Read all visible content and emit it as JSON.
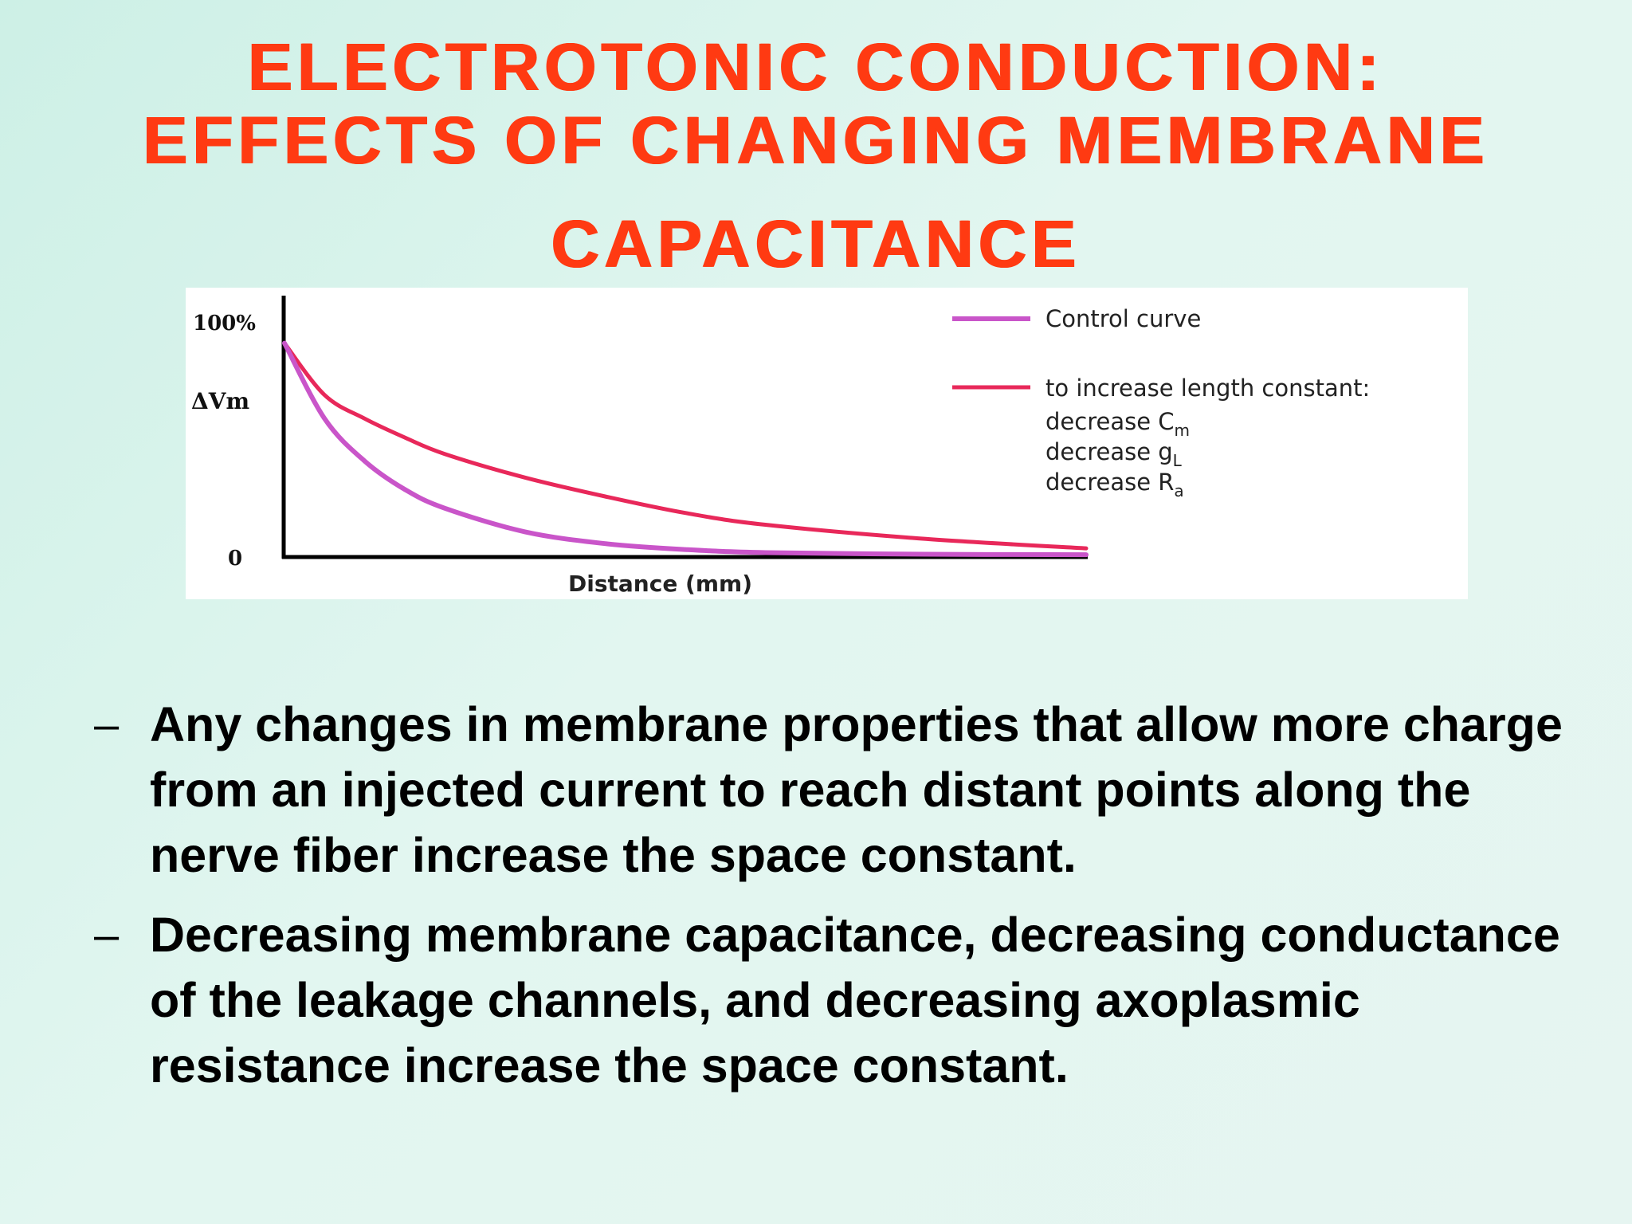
{
  "slide": {
    "title_lines": [
      "ELECTROTONIC CONDUCTION:",
      "EFFECTS OF CHANGING MEMBRANE",
      "CAPACITANCE"
    ],
    "bullets": [
      {
        "dash": "–",
        "text": "Any changes in membrane properties that allow more charge from an injected current to reach distant points along the nerve fiber increase the space constant."
      },
      {
        "dash": "–",
        "text": "Decreasing membrane capacitance, decreasing conductance of the leakage channels, and decreasing axoplasmic resistance increase the space constant."
      }
    ]
  },
  "chart_data": {
    "type": "line",
    "title": "",
    "xlabel": "Distance (mm)",
    "ylabel": "ΔVm",
    "y_ticks": [
      "100%",
      "0"
    ],
    "ylim": [
      0,
      100
    ],
    "xlim": [
      0,
      100
    ],
    "grid": false,
    "legend_position": "top-right",
    "series": [
      {
        "name": "Control curve",
        "color": "#c955c9",
        "x": [
          0,
          5,
          10,
          15,
          20,
          30,
          40,
          50,
          60,
          80,
          100
        ],
        "y": [
          90,
          58,
          40,
          28,
          20,
          10,
          5,
          2.5,
          1.2,
          0.5,
          0.3
        ]
      },
      {
        "name": "to increase length constant:",
        "sub_labels": [
          "decrease C",
          "decrease g",
          "decrease R"
        ],
        "sub_subscripts": [
          "m",
          "L",
          "a"
        ],
        "color": "#e8285a",
        "x": [
          0,
          5,
          10,
          15,
          20,
          30,
          40,
          50,
          60,
          80,
          100
        ],
        "y": [
          90,
          68,
          58,
          50,
          43,
          33,
          25,
          18,
          13,
          7,
          3
        ]
      }
    ]
  }
}
